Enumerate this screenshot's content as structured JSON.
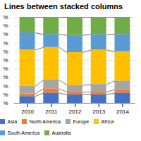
{
  "chart_data": {
    "type": "bar",
    "title": "Lines between stacked columns",
    "categories": [
      "2010",
      "2011",
      "2012",
      "2013",
      "2014"
    ],
    "series": [
      {
        "name": "Asia",
        "color": "#4472C4",
        "values": [
          0.08,
          0.12,
          0.1,
          0.1,
          0.12
        ]
      },
      {
        "name": "North America",
        "color": "#ED7D31",
        "values": [
          0.03,
          0.05,
          0.03,
          0.03,
          0.04
        ]
      },
      {
        "name": "Europe",
        "color": "#A5A5A5",
        "values": [
          0.09,
          0.1,
          0.08,
          0.09,
          0.1
        ]
      },
      {
        "name": "Africa",
        "color": "#FFC000",
        "values": [
          0.42,
          0.38,
          0.38,
          0.4,
          0.34
        ]
      },
      {
        "name": "South America",
        "color": "#5B9BD5",
        "values": [
          0.2,
          0.15,
          0.2,
          0.18,
          0.2
        ]
      },
      {
        "name": "Australia",
        "color": "#70AD47",
        "values": [
          0.18,
          0.2,
          0.21,
          0.2,
          0.2
        ]
      }
    ],
    "stacked": true,
    "ylim": [
      0,
      1
    ],
    "yticks": [
      {
        "value": 0.0,
        "label": "%"
      },
      {
        "value": 0.1,
        "label": "%"
      },
      {
        "value": 0.2,
        "label": "%"
      },
      {
        "value": 0.3,
        "label": "%"
      },
      {
        "value": 0.4,
        "label": "%"
      },
      {
        "value": 0.5,
        "label": "%"
      },
      {
        "value": 0.6,
        "label": "%"
      },
      {
        "value": 0.7,
        "label": "%"
      },
      {
        "value": 0.8,
        "label": "%"
      },
      {
        "value": 0.9,
        "label": "%"
      },
      {
        "value": 1.0,
        "label": "%"
      }
    ],
    "grid": true,
    "legend": "bottom"
  }
}
